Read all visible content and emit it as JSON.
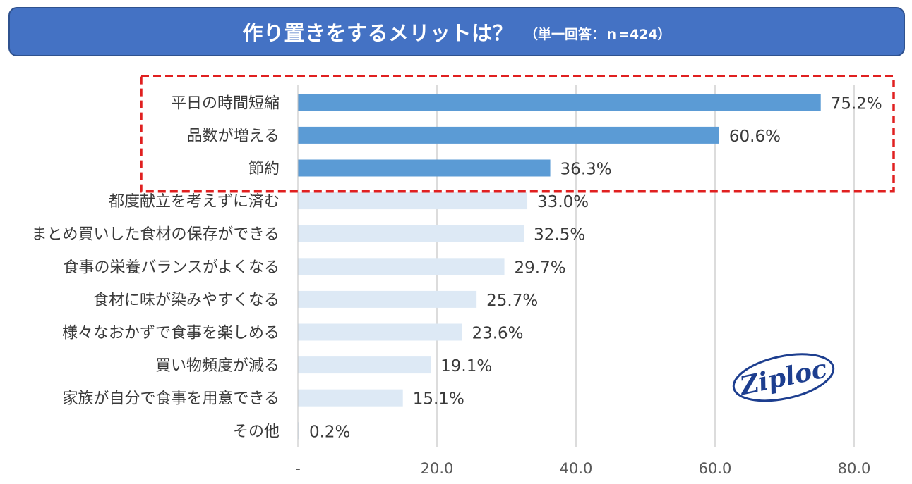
{
  "header": {
    "title": "作り置きをするメリットは？",
    "subtitle": "（単一回答：ｎ=424）"
  },
  "logo": {
    "text": "Ziploc",
    "icon": "ziploc-logo"
  },
  "colors": {
    "highlight_bar": "#5b9bd5",
    "other_bar": "#dde9f5",
    "highlight_box": "#e02020",
    "gridline": "#d0d0d0",
    "banner": "#4472c4"
  },
  "chart_data": {
    "type": "bar",
    "orientation": "horizontal",
    "title": "作り置きをするメリットは？",
    "categories": [
      "平日の時間短縮",
      "品数が増える",
      "節約",
      "都度献立を考えずに済む",
      "まとめ買いした食材の保存ができる",
      "食事の栄養バランスがよくなる",
      "食材に味が染みやすくなる",
      "様々なおかずで食事を楽しめる",
      "買い物頻度が減る",
      "家族が自分で食事を用意できる",
      "その他"
    ],
    "values": [
      75.2,
      60.6,
      36.3,
      33.0,
      32.5,
      29.7,
      25.7,
      23.6,
      19.1,
      15.1,
      0.2
    ],
    "value_labels": [
      "75.2%",
      "60.6%",
      "36.3%",
      "33.0%",
      "32.5%",
      "29.7%",
      "25.7%",
      "23.6%",
      "19.1%",
      "15.1%",
      "0.2%"
    ],
    "highlighted_count": 3,
    "xlim": [
      0,
      80
    ],
    "xticks": [
      0,
      20,
      40,
      60,
      80
    ],
    "xtick_labels": [
      "-",
      "20.0",
      "40.0",
      "60.0",
      "80.0"
    ],
    "grid": true,
    "xlabel": "",
    "ylabel": ""
  }
}
